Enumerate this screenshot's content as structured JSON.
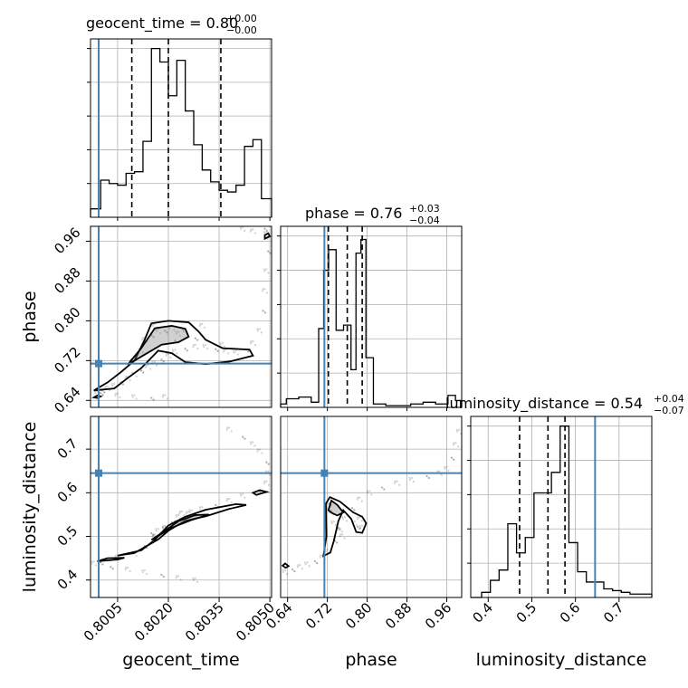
{
  "chart_data": {
    "type": "corner",
    "parameters": [
      "geocent_time",
      "phase",
      "luminosity_distance"
    ],
    "truths": {
      "geocent_time": 0.79994,
      "phase": 0.714,
      "luminosity_distance": 0.645
    },
    "titles": [
      {
        "param": "geocent_time",
        "text": "geocent_time = 0.80",
        "plus": "+0.00",
        "minus": "−0.00"
      },
      {
        "param": "phase",
        "text": "phase = 0.76",
        "plus": "+0.03",
        "minus": "−0.04"
      },
      {
        "param": "luminosity_distance",
        "text": "luminosity_distance = 0.54",
        "plus": "+0.04",
        "minus": "−0.07"
      }
    ],
    "axis_labels": {
      "x": [
        "geocent_time",
        "phase",
        "luminosity_distance"
      ],
      "y": [
        "phase",
        "luminosity_distance"
      ]
    },
    "ticks": {
      "geocent_time": [
        "0.8005",
        "0.8020",
        "0.8035",
        "0.8050"
      ],
      "phase": [
        "0.64",
        "0.72",
        "0.80",
        "0.88",
        "0.96"
      ],
      "luminosity_distance": [
        "0.4",
        "0.5",
        "0.6",
        "0.7"
      ]
    },
    "ranges": {
      "geocent_time": [
        0.7997,
        0.80505
      ],
      "phase": [
        0.626,
        0.99
      ],
      "luminosity_distance": [
        0.36,
        0.775
      ]
    },
    "grid": true,
    "colors": {
      "truth": "#4682b4",
      "hist": "#000000"
    },
    "marginals": {
      "geocent_time": {
        "edges": [
          0.7997,
          0.8,
          0.80025,
          0.8005,
          0.80075,
          0.801,
          0.80125,
          0.8015,
          0.80175,
          0.802,
          0.80225,
          0.8025,
          0.80275,
          0.803,
          0.80325,
          0.8035,
          0.80375,
          0.804,
          0.80425,
          0.8045,
          0.80475,
          0.80505
        ],
        "counts": [
          0.05,
          0.22,
          0.2,
          0.19,
          0.26,
          0.27,
          0.45,
          1.0,
          0.92,
          0.72,
          0.93,
          0.63,
          0.43,
          0.28,
          0.21,
          0.16,
          0.15,
          0.19,
          0.42,
          0.46,
          0.11
        ],
        "quantiles": [
          0.80092,
          0.802,
          0.80355
        ]
      },
      "phase": {
        "edges": [
          0.626,
          0.6375,
          0.6625,
          0.6875,
          0.7025,
          0.7125,
          0.7225,
          0.7375,
          0.7525,
          0.7675,
          0.7775,
          0.7875,
          0.7975,
          0.8125,
          0.8375,
          0.8625,
          0.8875,
          0.9125,
          0.9375,
          0.9625,
          0.9775,
          0.99
        ],
        "counts": [
          0.02,
          0.05,
          0.06,
          0.03,
          0.46,
          0.8,
          0.92,
          0.45,
          0.48,
          0.22,
          0.9,
          0.98,
          0.29,
          0.02,
          0.01,
          0.01,
          0.02,
          0.03,
          0.02,
          0.07,
          0.04
        ],
        "quantiles": [
          0.722,
          0.76,
          0.79
        ]
      },
      "luminosity_distance": {
        "edges": [
          0.36,
          0.385,
          0.405,
          0.425,
          0.445,
          0.465,
          0.485,
          0.505,
          0.525,
          0.545,
          0.565,
          0.585,
          0.605,
          0.625,
          0.645,
          0.665,
          0.685,
          0.705,
          0.725,
          0.745,
          0.775
        ],
        "counts": [
          0.0,
          0.03,
          0.1,
          0.16,
          0.43,
          0.26,
          0.35,
          0.61,
          0.61,
          0.73,
          1.0,
          0.32,
          0.15,
          0.09,
          0.09,
          0.05,
          0.04,
          0.03,
          0.02,
          0.02
        ],
        "quantiles": [
          0.472,
          0.537,
          0.576
        ]
      }
    },
    "joint": {
      "phase_vs_geocent_time": {
        "samples": [
          [
            0.7999,
            0.655
          ],
          [
            0.80005,
            0.66
          ],
          [
            0.8002,
            0.664
          ],
          [
            0.8004,
            0.67
          ],
          [
            0.8006,
            0.676
          ],
          [
            0.8008,
            0.684
          ],
          [
            0.801,
            0.692
          ],
          [
            0.8012,
            0.7
          ],
          [
            0.8014,
            0.707
          ],
          [
            0.8016,
            0.714
          ],
          [
            0.8018,
            0.722
          ],
          [
            0.802,
            0.73
          ],
          [
            0.8022,
            0.738
          ],
          [
            0.8025,
            0.744
          ],
          [
            0.8028,
            0.748
          ],
          [
            0.8031,
            0.748
          ],
          [
            0.8034,
            0.743
          ],
          [
            0.8037,
            0.738
          ],
          [
            0.804,
            0.736
          ],
          [
            0.8043,
            0.742
          ],
          [
            0.8045,
            0.755
          ],
          [
            0.8047,
            0.78
          ],
          [
            0.8048,
            0.82
          ],
          [
            0.80485,
            0.86
          ],
          [
            0.8049,
            0.9
          ],
          [
            0.80495,
            0.94
          ],
          [
            0.805,
            0.965
          ],
          [
            0.8049,
            0.975
          ],
          [
            0.80485,
            0.985
          ],
          [
            0.8045,
            0.98
          ],
          [
            0.8042,
            0.985
          ],
          [
            0.8,
            0.655
          ],
          [
            0.8005,
            0.65
          ],
          [
            0.801,
            0.647
          ],
          [
            0.8015,
            0.645
          ],
          [
            0.8019,
            0.647
          ],
          [
            0.8017,
            0.779
          ],
          [
            0.8019,
            0.78
          ],
          [
            0.8021,
            0.785
          ],
          [
            0.8023,
            0.774
          ],
          [
            0.8015,
            0.771
          ],
          [
            0.8013,
            0.762
          ],
          [
            0.8025,
            0.778
          ],
          [
            0.8028,
            0.765
          ],
          [
            0.8016,
            0.79
          ],
          [
            0.8012,
            0.74
          ],
          [
            0.8009,
            0.722
          ],
          [
            0.803,
            0.79
          ],
          [
            0.8036,
            0.752
          ],
          [
            0.8022,
            0.76
          ]
        ],
        "contours": [
          [
            [
              0.7998,
              0.66
            ],
            [
              0.8002,
              0.676
            ],
            [
              0.8006,
              0.697
            ],
            [
              0.801,
              0.72
            ],
            [
              0.8013,
              0.762
            ],
            [
              0.8015,
              0.795
            ],
            [
              0.802,
              0.8
            ],
            [
              0.8026,
              0.797
            ],
            [
              0.8029,
              0.778
            ],
            [
              0.8031,
              0.762
            ],
            [
              0.8036,
              0.745
            ],
            [
              0.8044,
              0.742
            ],
            [
              0.8045,
              0.73
            ],
            [
              0.8038,
              0.718
            ],
            [
              0.8031,
              0.713
            ],
            [
              0.8025,
              0.717
            ],
            [
              0.8021,
              0.735
            ],
            [
              0.8017,
              0.74
            ],
            [
              0.8012,
              0.705
            ],
            [
              0.8008,
              0.685
            ],
            [
              0.8004,
              0.664
            ],
            [
              0.7998,
              0.66
            ]
          ],
          [
            [
              0.8008,
              0.712
            ],
            [
              0.8012,
              0.745
            ],
            [
              0.8016,
              0.785
            ],
            [
              0.8021,
              0.79
            ],
            [
              0.8025,
              0.784
            ],
            [
              0.8026,
              0.768
            ],
            [
              0.8023,
              0.757
            ],
            [
              0.8018,
              0.752
            ],
            [
              0.8012,
              0.728
            ],
            [
              0.8008,
              0.712
            ]
          ],
          [
            [
              0.80485,
              0.965
            ],
            [
              0.805,
              0.97
            ],
            [
              0.80495,
              0.976
            ],
            [
              0.80485,
              0.972
            ],
            [
              0.80485,
              0.965
            ]
          ],
          [
            [
              0.7998,
              0.646
            ],
            [
              0.7999,
              0.65
            ],
            [
              0.8,
              0.648
            ],
            [
              0.7999,
              0.645
            ],
            [
              0.7998,
              0.646
            ]
          ]
        ]
      },
      "luminosity_distance_vs_geocent_time": {
        "samples": [
          [
            0.7998,
            0.438
          ],
          [
            0.8003,
            0.43
          ],
          [
            0.8008,
            0.424
          ],
          [
            0.8013,
            0.418
          ],
          [
            0.8018,
            0.412
          ],
          [
            0.8023,
            0.405
          ],
          [
            0.8028,
            0.4
          ],
          [
            0.8,
            0.44
          ],
          [
            0.8005,
            0.452
          ],
          [
            0.801,
            0.46
          ],
          [
            0.8013,
            0.478
          ],
          [
            0.8016,
            0.5
          ],
          [
            0.8019,
            0.517
          ],
          [
            0.8022,
            0.535
          ],
          [
            0.8026,
            0.552
          ],
          [
            0.803,
            0.563
          ],
          [
            0.8034,
            0.572
          ],
          [
            0.8038,
            0.582
          ],
          [
            0.8042,
            0.593
          ],
          [
            0.8047,
            0.603
          ],
          [
            0.8049,
            0.622
          ],
          [
            0.80495,
            0.645
          ],
          [
            0.8049,
            0.67
          ],
          [
            0.8047,
            0.695
          ],
          [
            0.8045,
            0.712
          ],
          [
            0.8042,
            0.728
          ],
          [
            0.8038,
            0.745
          ],
          [
            0.8017,
            0.513
          ],
          [
            0.8021,
            0.532
          ],
          [
            0.8024,
            0.553
          ],
          [
            0.8027,
            0.556
          ],
          [
            0.8015,
            0.507
          ],
          [
            0.8019,
            0.52
          ],
          [
            0.8023,
            0.545
          ],
          [
            0.8028,
            0.547
          ]
        ],
        "contours": [
          [
            [
              0.8005,
              0.456
            ],
            [
              0.8012,
              0.468
            ],
            [
              0.8016,
              0.492
            ],
            [
              0.802,
              0.525
            ],
            [
              0.8025,
              0.545
            ],
            [
              0.8031,
              0.561
            ],
            [
              0.804,
              0.574
            ],
            [
              0.8043,
              0.572
            ],
            [
              0.8038,
              0.563
            ],
            [
              0.8031,
              0.546
            ],
            [
              0.8025,
              0.536
            ],
            [
              0.802,
              0.513
            ],
            [
              0.8017,
              0.493
            ],
            [
              0.801,
              0.462
            ],
            [
              0.8005,
              0.456
            ]
          ],
          [
            [
              0.8015,
              0.492
            ],
            [
              0.8019,
              0.513
            ],
            [
              0.8023,
              0.535
            ],
            [
              0.8028,
              0.549
            ],
            [
              0.8032,
              0.55
            ],
            [
              0.8027,
              0.538
            ],
            [
              0.8021,
              0.52
            ],
            [
              0.8017,
              0.501
            ],
            [
              0.8015,
              0.492
            ]
          ],
          [
            [
              0.7999,
              0.443
            ],
            [
              0.8005,
              0.447
            ],
            [
              0.8007,
              0.451
            ],
            [
              0.8002,
              0.45
            ],
            [
              0.7999,
              0.443
            ]
          ],
          [
            [
              0.8046,
              0.595
            ],
            [
              0.8049,
              0.602
            ],
            [
              0.8047,
              0.606
            ],
            [
              0.8045,
              0.6
            ],
            [
              0.8046,
              0.595
            ]
          ]
        ]
      },
      "luminosity_distance_vs_phase": {
        "samples": [
          [
            0.635,
            0.418
          ],
          [
            0.65,
            0.424
          ],
          [
            0.665,
            0.43
          ],
          [
            0.68,
            0.436
          ],
          [
            0.695,
            0.443
          ],
          [
            0.71,
            0.452
          ],
          [
            0.72,
            0.465
          ],
          [
            0.735,
            0.49
          ],
          [
            0.745,
            0.515
          ],
          [
            0.755,
            0.54
          ],
          [
            0.77,
            0.565
          ],
          [
            0.785,
            0.585
          ],
          [
            0.805,
            0.6
          ],
          [
            0.83,
            0.612
          ],
          [
            0.86,
            0.622
          ],
          [
            0.89,
            0.63
          ],
          [
            0.92,
            0.638
          ],
          [
            0.945,
            0.645
          ],
          [
            0.96,
            0.655
          ],
          [
            0.97,
            0.68
          ],
          [
            0.978,
            0.71
          ],
          [
            0.985,
            0.74
          ],
          [
            0.723,
            0.575
          ],
          [
            0.728,
            0.555
          ],
          [
            0.733,
            0.53
          ],
          [
            0.741,
            0.52
          ],
          [
            0.75,
            0.5
          ],
          [
            0.775,
            0.53
          ],
          [
            0.781,
            0.522
          ],
          [
            0.785,
            0.54
          ],
          [
            0.79,
            0.52
          ]
        ],
        "contours": [
          [
            [
              0.712,
              0.455
            ],
            [
              0.718,
              0.5
            ],
            [
              0.717,
              0.575
            ],
            [
              0.725,
              0.59
            ],
            [
              0.745,
              0.58
            ],
            [
              0.772,
              0.555
            ],
            [
              0.79,
              0.545
            ],
            [
              0.798,
              0.53
            ],
            [
              0.79,
              0.508
            ],
            [
              0.778,
              0.51
            ],
            [
              0.768,
              0.54
            ],
            [
              0.752,
              0.56
            ],
            [
              0.742,
              0.535
            ],
            [
              0.733,
              0.49
            ],
            [
              0.726,
              0.463
            ],
            [
              0.712,
              0.455
            ]
          ],
          [
            [
              0.722,
              0.56
            ],
            [
              0.728,
              0.582
            ],
            [
              0.74,
              0.572
            ],
            [
              0.752,
              0.555
            ],
            [
              0.74,
              0.548
            ],
            [
              0.73,
              0.553
            ],
            [
              0.722,
              0.56
            ]
          ],
          [
            [
              0.63,
              0.433
            ],
            [
              0.635,
              0.438
            ],
            [
              0.642,
              0.432
            ],
            [
              0.636,
              0.428
            ],
            [
              0.63,
              0.433
            ]
          ]
        ]
      }
    }
  }
}
